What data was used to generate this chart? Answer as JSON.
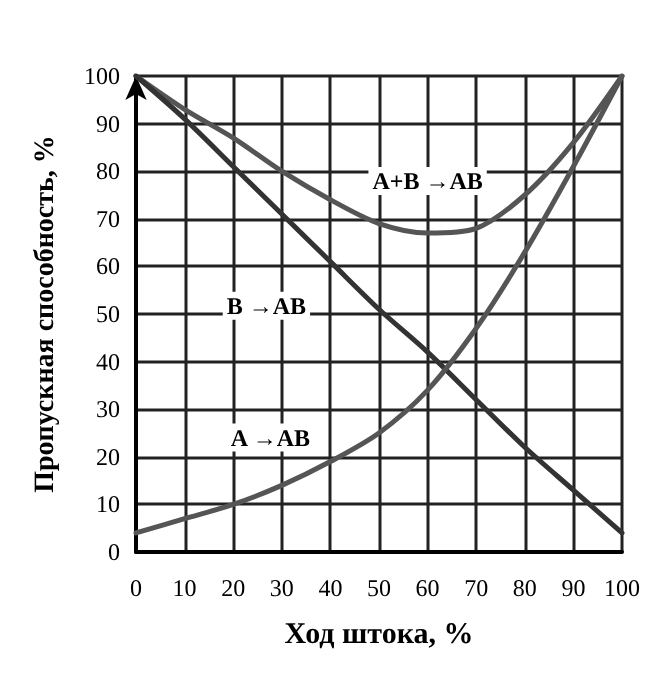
{
  "chart_data": {
    "type": "line",
    "xlabel": "Ход штока, %",
    "ylabel": "Пропускная способность, %",
    "x": [
      0,
      10,
      20,
      30,
      40,
      50,
      60,
      70,
      80,
      90,
      100
    ],
    "series": [
      {
        "name": "A+B →AB",
        "color": "#555555",
        "values": [
          100,
          93,
          87,
          80,
          74,
          69,
          67,
          68,
          75,
          86,
          100
        ]
      },
      {
        "name": "B →AB",
        "color": "#333333",
        "values": [
          100,
          91,
          81,
          71,
          61,
          51,
          42,
          32,
          22,
          13,
          4
        ]
      },
      {
        "name": "A →AB",
        "color": "#555555",
        "values": [
          4,
          7,
          10,
          14,
          19,
          25,
          34,
          47,
          63,
          81,
          100
        ]
      }
    ],
    "xlim": [
      0,
      100
    ],
    "ylim": [
      0,
      100
    ],
    "xticks": [
      0,
      10,
      20,
      30,
      40,
      50,
      60,
      70,
      80,
      90,
      100
    ],
    "yticks": [
      0,
      10,
      20,
      30,
      40,
      50,
      60,
      70,
      80,
      90,
      100
    ],
    "grid": true,
    "marker": "none",
    "line_style": "solid"
  }
}
